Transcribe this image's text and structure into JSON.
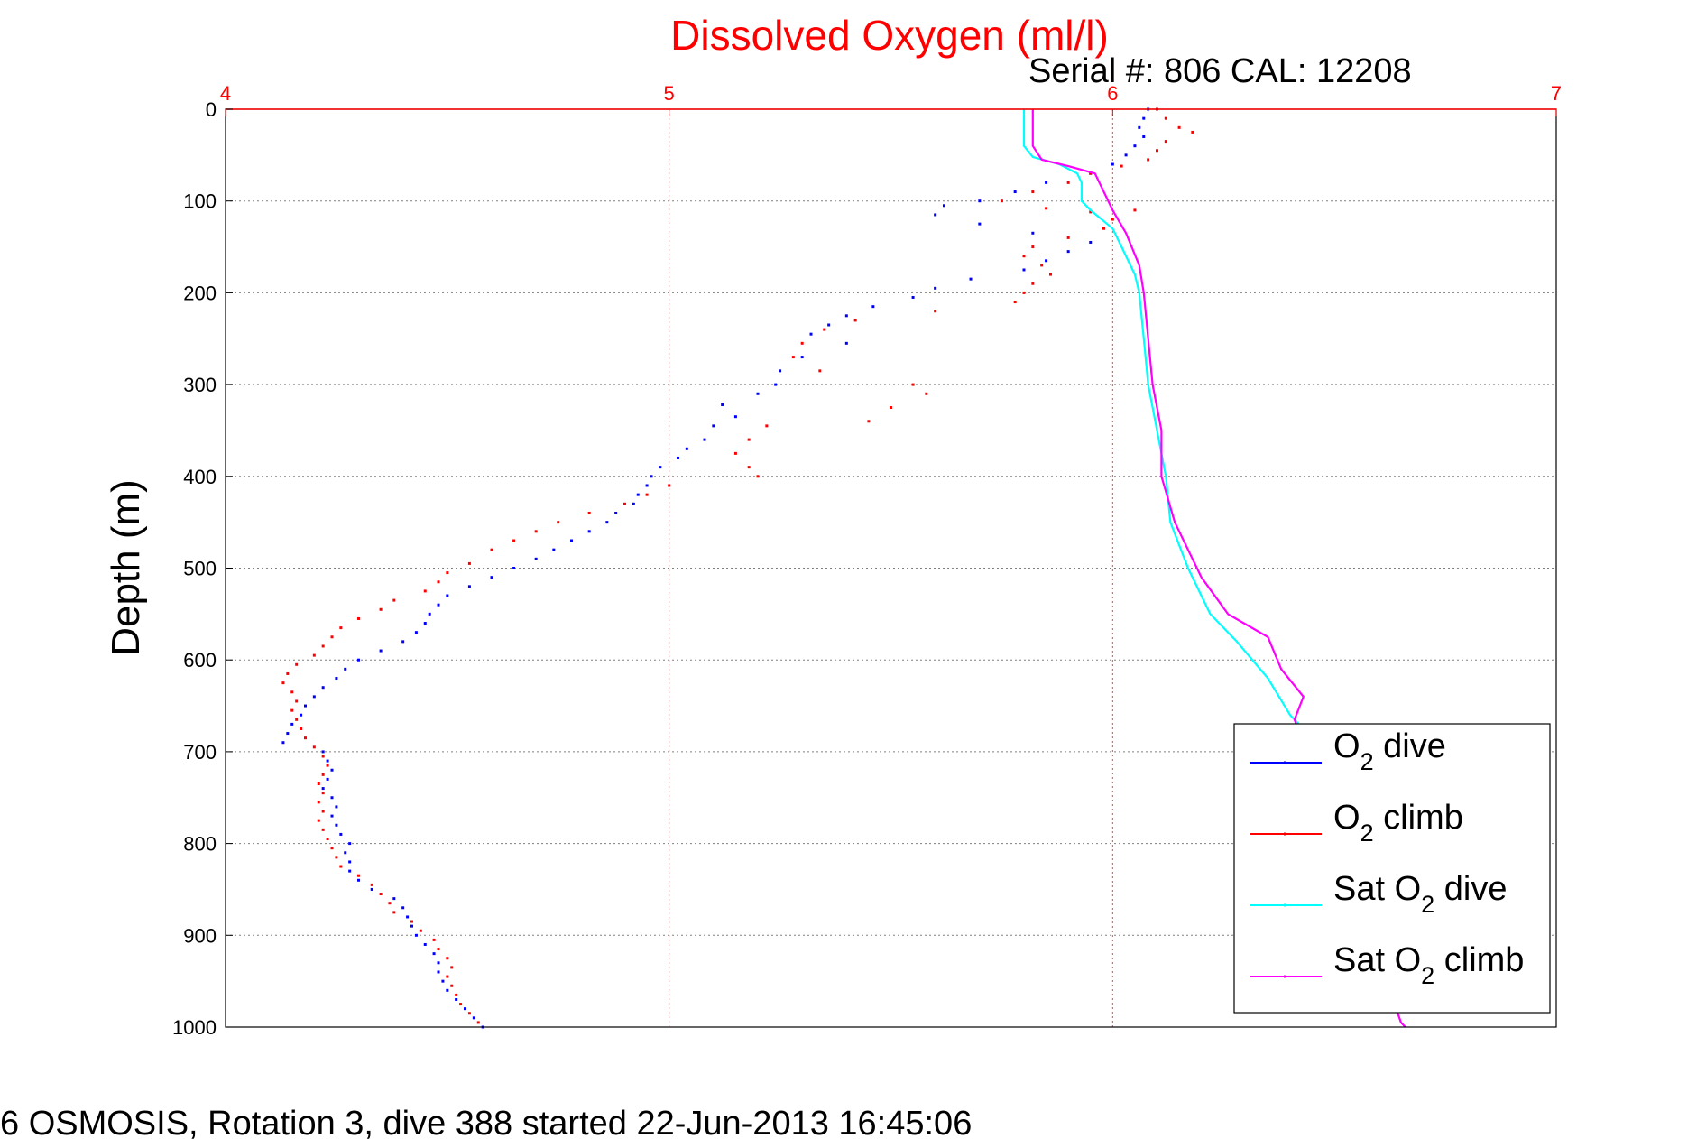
{
  "chart_data": {
    "type": "line",
    "title": "Dissolved Oxygen (ml/l)",
    "subtitle": "Serial #: 806  CAL: 12208",
    "footer": "6 OSMOSIS, Rotation 3, dive 388 started 22-Jun-2013 16:45:06",
    "ylabel": "Depth (m)",
    "xlabel": "",
    "xlim": [
      4,
      7
    ],
    "ylim": [
      0,
      1000
    ],
    "y_inverted": true,
    "x_axis_position": "top",
    "grid": true,
    "legend_position": "lower-right",
    "x_ticks": [
      "4",
      "5",
      "6",
      "7"
    ],
    "y_ticks": [
      "0",
      "100",
      "200",
      "300",
      "400",
      "500",
      "600",
      "700",
      "800",
      "900",
      "1000"
    ],
    "colors": {
      "title": "#ff0000",
      "top_axis": "#ff0000",
      "o2_dive": "#0000ff",
      "o2_climb": "#ff0000",
      "sat_dive": "#00ffff",
      "sat_climb": "#ff00ff"
    },
    "legend": [
      {
        "pre": "O",
        "sub": "2",
        "post": " dive"
      },
      {
        "pre": "O",
        "sub": "2",
        "post": " climb"
      },
      {
        "pre": "Sat O",
        "sub": "2",
        "post": " dive"
      },
      {
        "pre": "Sat O",
        "sub": "2",
        "post": " climb"
      }
    ],
    "series": [
      {
        "name": "O2 dive",
        "style": "dots",
        "points": [
          [
            6.08,
            0
          ],
          [
            6.07,
            10
          ],
          [
            6.06,
            20
          ],
          [
            6.07,
            30
          ],
          [
            6.05,
            40
          ],
          [
            6.03,
            50
          ],
          [
            6.0,
            60
          ],
          [
            5.95,
            70
          ],
          [
            5.85,
            80
          ],
          [
            5.78,
            90
          ],
          [
            5.7,
            100
          ],
          [
            5.62,
            105
          ],
          [
            5.6,
            115
          ],
          [
            5.7,
            125
          ],
          [
            5.82,
            135
          ],
          [
            5.95,
            145
          ],
          [
            5.9,
            155
          ],
          [
            5.85,
            165
          ],
          [
            5.8,
            175
          ],
          [
            5.68,
            185
          ],
          [
            5.6,
            195
          ],
          [
            5.55,
            205
          ],
          [
            5.46,
            215
          ],
          [
            5.4,
            225
          ],
          [
            5.36,
            235
          ],
          [
            5.32,
            245
          ],
          [
            5.4,
            255
          ],
          [
            5.3,
            270
          ],
          [
            5.25,
            285
          ],
          [
            5.24,
            300
          ],
          [
            5.2,
            310
          ],
          [
            5.12,
            322
          ],
          [
            5.15,
            335
          ],
          [
            5.1,
            345
          ],
          [
            5.08,
            360
          ],
          [
            5.04,
            370
          ],
          [
            5.02,
            380
          ],
          [
            4.98,
            390
          ],
          [
            4.96,
            400
          ],
          [
            4.95,
            410
          ],
          [
            4.93,
            420
          ],
          [
            4.92,
            430
          ],
          [
            4.88,
            440
          ],
          [
            4.86,
            450
          ],
          [
            4.82,
            460
          ],
          [
            4.78,
            470
          ],
          [
            4.74,
            480
          ],
          [
            4.7,
            490
          ],
          [
            4.65,
            500
          ],
          [
            4.6,
            510
          ],
          [
            4.55,
            520
          ],
          [
            4.5,
            530
          ],
          [
            4.48,
            540
          ],
          [
            4.46,
            550
          ],
          [
            4.45,
            560
          ],
          [
            4.43,
            570
          ],
          [
            4.4,
            580
          ],
          [
            4.35,
            590
          ],
          [
            4.3,
            600
          ],
          [
            4.27,
            610
          ],
          [
            4.25,
            620
          ],
          [
            4.22,
            630
          ],
          [
            4.2,
            640
          ],
          [
            4.18,
            650
          ],
          [
            4.17,
            660
          ],
          [
            4.15,
            670
          ],
          [
            4.14,
            680
          ],
          [
            4.13,
            690
          ],
          [
            4.22,
            700
          ],
          [
            4.23,
            710
          ],
          [
            4.24,
            720
          ],
          [
            4.23,
            730
          ],
          [
            4.22,
            740
          ],
          [
            4.24,
            750
          ],
          [
            4.25,
            760
          ],
          [
            4.24,
            770
          ],
          [
            4.25,
            780
          ],
          [
            4.26,
            790
          ],
          [
            4.28,
            800
          ],
          [
            4.27,
            810
          ],
          [
            4.28,
            820
          ],
          [
            4.28,
            830
          ],
          [
            4.3,
            840
          ],
          [
            4.33,
            850
          ],
          [
            4.38,
            860
          ],
          [
            4.4,
            870
          ],
          [
            4.41,
            880
          ],
          [
            4.42,
            890
          ],
          [
            4.43,
            900
          ],
          [
            4.45,
            910
          ],
          [
            4.47,
            920
          ],
          [
            4.48,
            930
          ],
          [
            4.48,
            940
          ],
          [
            4.49,
            950
          ],
          [
            4.5,
            960
          ],
          [
            4.52,
            970
          ],
          [
            4.54,
            980
          ],
          [
            4.56,
            990
          ],
          [
            4.58,
            1000
          ]
        ]
      },
      {
        "name": "O2 climb",
        "style": "dots",
        "points": [
          [
            6.1,
            0
          ],
          [
            6.12,
            10
          ],
          [
            6.15,
            20
          ],
          [
            6.18,
            25
          ],
          [
            6.12,
            35
          ],
          [
            6.1,
            45
          ],
          [
            6.08,
            55
          ],
          [
            6.02,
            62
          ],
          [
            5.95,
            70
          ],
          [
            5.9,
            80
          ],
          [
            5.82,
            90
          ],
          [
            5.75,
            100
          ],
          [
            5.85,
            108
          ],
          [
            5.95,
            112
          ],
          [
            6.05,
            110
          ],
          [
            6.0,
            120
          ],
          [
            5.98,
            130
          ],
          [
            5.9,
            140
          ],
          [
            5.82,
            150
          ],
          [
            5.8,
            160
          ],
          [
            5.84,
            170
          ],
          [
            5.86,
            180
          ],
          [
            5.82,
            190
          ],
          [
            5.8,
            200
          ],
          [
            5.78,
            210
          ],
          [
            5.6,
            220
          ],
          [
            5.42,
            230
          ],
          [
            5.35,
            240
          ],
          [
            5.3,
            255
          ],
          [
            5.28,
            270
          ],
          [
            5.34,
            285
          ],
          [
            5.55,
            300
          ],
          [
            5.58,
            310
          ],
          [
            5.5,
            325
          ],
          [
            5.45,
            340
          ],
          [
            5.22,
            345
          ],
          [
            5.18,
            360
          ],
          [
            5.15,
            375
          ],
          [
            5.18,
            390
          ],
          [
            5.2,
            400
          ],
          [
            5.0,
            410
          ],
          [
            4.95,
            420
          ],
          [
            4.9,
            430
          ],
          [
            4.82,
            440
          ],
          [
            4.75,
            450
          ],
          [
            4.7,
            460
          ],
          [
            4.65,
            470
          ],
          [
            4.6,
            480
          ],
          [
            4.55,
            495
          ],
          [
            4.5,
            505
          ],
          [
            4.48,
            515
          ],
          [
            4.45,
            525
          ],
          [
            4.38,
            535
          ],
          [
            4.35,
            545
          ],
          [
            4.3,
            555
          ],
          [
            4.26,
            565
          ],
          [
            4.24,
            575
          ],
          [
            4.22,
            585
          ],
          [
            4.2,
            595
          ],
          [
            4.16,
            605
          ],
          [
            4.14,
            615
          ],
          [
            4.13,
            625
          ],
          [
            4.15,
            635
          ],
          [
            4.16,
            645
          ],
          [
            4.15,
            655
          ],
          [
            4.16,
            665
          ],
          [
            4.17,
            675
          ],
          [
            4.18,
            685
          ],
          [
            4.2,
            695
          ],
          [
            4.22,
            705
          ],
          [
            4.23,
            715
          ],
          [
            4.22,
            725
          ],
          [
            4.21,
            735
          ],
          [
            4.22,
            745
          ],
          [
            4.21,
            755
          ],
          [
            4.22,
            765
          ],
          [
            4.21,
            775
          ],
          [
            4.22,
            785
          ],
          [
            4.23,
            795
          ],
          [
            4.24,
            805
          ],
          [
            4.25,
            815
          ],
          [
            4.26,
            825
          ],
          [
            4.3,
            835
          ],
          [
            4.33,
            845
          ],
          [
            4.35,
            855
          ],
          [
            4.37,
            865
          ],
          [
            4.38,
            875
          ],
          [
            4.42,
            885
          ],
          [
            4.44,
            895
          ],
          [
            4.47,
            905
          ],
          [
            4.48,
            915
          ],
          [
            4.5,
            925
          ],
          [
            4.51,
            935
          ],
          [
            4.5,
            945
          ],
          [
            4.51,
            955
          ],
          [
            4.52,
            965
          ],
          [
            4.53,
            975
          ],
          [
            4.55,
            985
          ],
          [
            4.57,
            995
          ]
        ]
      },
      {
        "name": "Sat O2 dive",
        "style": "line",
        "points": [
          [
            5.8,
            0
          ],
          [
            5.8,
            20
          ],
          [
            5.8,
            40
          ],
          [
            5.82,
            52
          ],
          [
            5.88,
            60
          ],
          [
            5.92,
            70
          ],
          [
            5.93,
            80
          ],
          [
            5.93,
            100
          ],
          [
            5.95,
            110
          ],
          [
            6.0,
            130
          ],
          [
            6.02,
            150
          ],
          [
            6.05,
            180
          ],
          [
            6.06,
            200
          ],
          [
            6.07,
            250
          ],
          [
            6.08,
            300
          ],
          [
            6.1,
            350
          ],
          [
            6.12,
            400
          ],
          [
            6.13,
            450
          ],
          [
            6.17,
            500
          ],
          [
            6.22,
            550
          ],
          [
            6.28,
            580
          ],
          [
            6.35,
            620
          ],
          [
            6.4,
            660
          ],
          [
            6.42,
            670
          ]
        ]
      },
      {
        "name": "Sat O2 climb",
        "style": "line",
        "points": [
          [
            5.82,
            0
          ],
          [
            5.82,
            20
          ],
          [
            5.82,
            40
          ],
          [
            5.84,
            55
          ],
          [
            5.9,
            62
          ],
          [
            5.96,
            70
          ],
          [
            5.98,
            90
          ],
          [
            6.0,
            110
          ],
          [
            6.03,
            135
          ],
          [
            6.06,
            170
          ],
          [
            6.07,
            200
          ],
          [
            6.08,
            250
          ],
          [
            6.09,
            300
          ],
          [
            6.11,
            350
          ],
          [
            6.11,
            400
          ],
          [
            6.14,
            450
          ],
          [
            6.2,
            510
          ],
          [
            6.26,
            550
          ],
          [
            6.35,
            575
          ],
          [
            6.38,
            610
          ],
          [
            6.43,
            640
          ],
          [
            6.41,
            665
          ],
          [
            6.65,
            995
          ],
          [
            6.66,
            1000
          ]
        ]
      }
    ]
  }
}
